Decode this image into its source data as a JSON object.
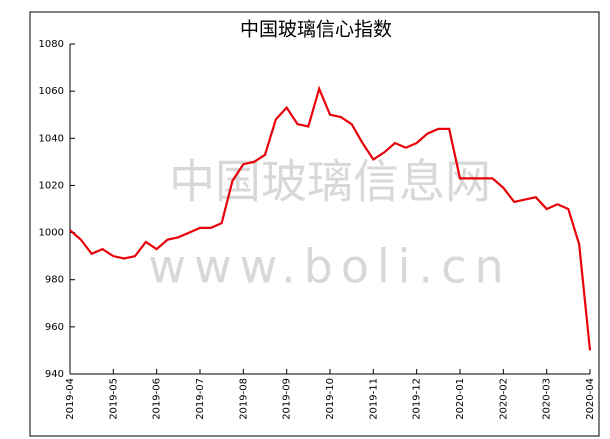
{
  "chart_data": {
    "type": "line",
    "title": "中国玻璃信心指数",
    "watermark": [
      "中国玻璃信息网",
      "www.boli.cn"
    ],
    "categories": [
      "2019-04",
      null,
      null,
      null,
      "2019-05",
      null,
      null,
      null,
      "2019-06",
      null,
      null,
      null,
      "2019-07",
      null,
      null,
      null,
      "2019-08",
      null,
      null,
      null,
      "2019-09",
      null,
      null,
      null,
      "2019-10",
      null,
      null,
      null,
      "2019-11",
      null,
      null,
      null,
      "2019-12",
      null,
      null,
      null,
      "2020-01",
      null,
      null,
      null,
      "2020-02",
      null,
      null,
      null,
      "2020-03",
      null,
      null,
      null,
      "2020-04"
    ],
    "values": [
      1001,
      997,
      991,
      993,
      990,
      989,
      990,
      996,
      993,
      997,
      998,
      1000,
      1002,
      1002,
      1004,
      1022,
      1029,
      1030,
      1033,
      1048,
      1053,
      1046,
      1045,
      1061,
      1050,
      1049,
      1046,
      1038,
      1031,
      1034,
      1038,
      1036,
      1038,
      1042,
      1044,
      1044,
      1023,
      1023,
      1023,
      1023,
      1019,
      1013,
      1014,
      1015,
      1010,
      1012,
      1010,
      995,
      950
    ],
    "color": "#e8000b",
    "ylim": [
      940,
      1080
    ],
    "yticks": [
      940,
      960,
      980,
      1000,
      1020,
      1040,
      1060,
      1080
    ],
    "grid": false
  }
}
